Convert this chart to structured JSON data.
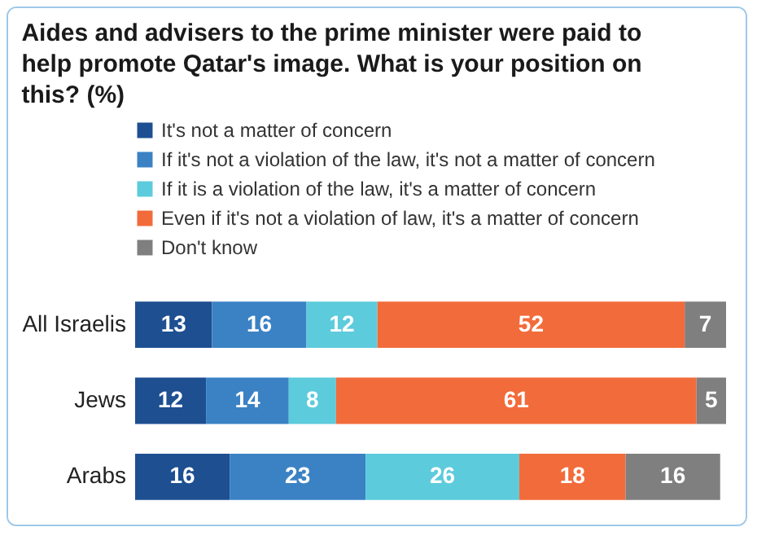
{
  "chart_data": {
    "type": "bar",
    "orientation": "horizontal",
    "stacked": true,
    "data_labels": true,
    "legend": "top left",
    "title": "Aides and advisers to the prime minister were paid to help promote Qatar's image. What is your position on this? (%)",
    "categories": [
      "All Israelis",
      "Jews",
      "Arabs"
    ],
    "series": [
      {
        "name": "It's not a matter of concern",
        "color": "#1d4f91",
        "values": [
          13,
          12,
          16
        ]
      },
      {
        "name": "If it's not a violation of the law, it's not a matter of concern",
        "color": "#3b82c4",
        "values": [
          16,
          14,
          23
        ]
      },
      {
        "name": "If it is a violation of the law, it's a matter of concern",
        "color": "#5ccbdc",
        "values": [
          12,
          8,
          26
        ]
      },
      {
        "name": "Even if it's not a violation of law, it's a matter of concern",
        "color": "#f26b3b",
        "values": [
          52,
          61,
          18
        ]
      },
      {
        "name": "Don't know",
        "color": "#7f7f7f",
        "values": [
          7,
          5,
          16
        ]
      }
    ]
  }
}
